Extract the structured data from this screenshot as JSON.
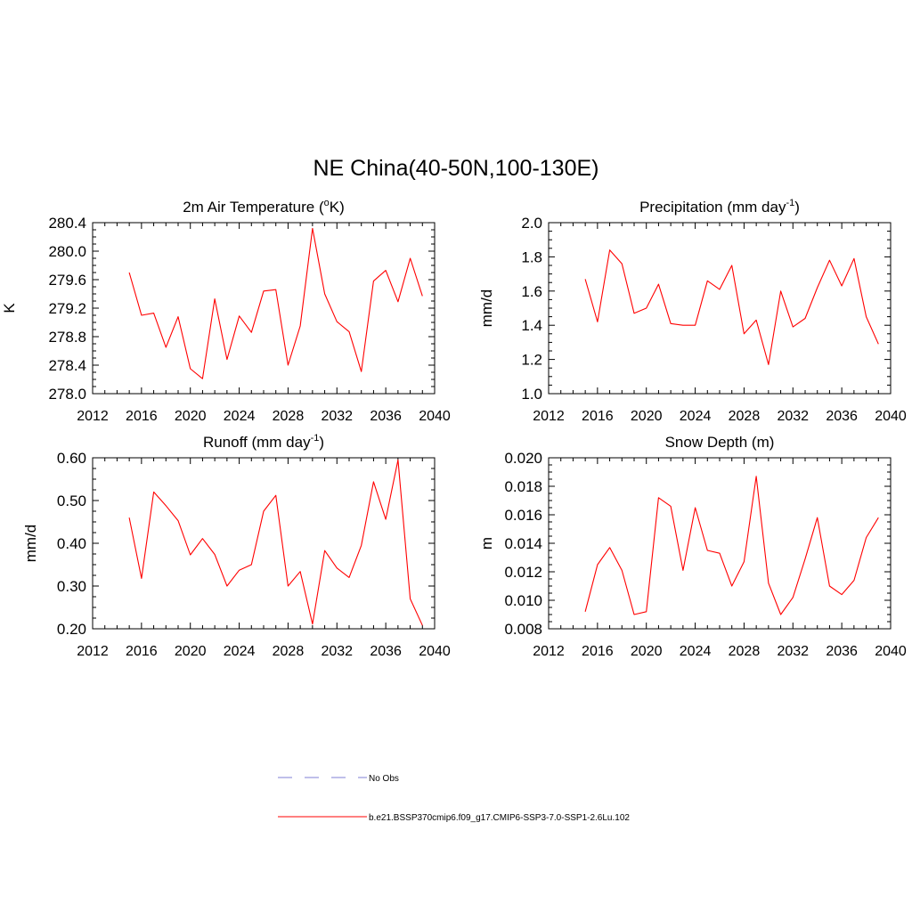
{
  "title": "NE China(40-50N,100-130E)",
  "series_color": "#ff0000",
  "legend": {
    "obs_label": "No Obs",
    "obs_color": "#9999dd",
    "model_label": "b.e21.BSSP370cmip6.f09_g17.CMIP6-SSP3-7.0-SSP1-2.6Lu.102",
    "model_color": "#ff0000"
  },
  "chart_data": [
    {
      "type": "line",
      "title_main": "2m Air Temperature (",
      "title_sup": "o",
      "title_end": "K)",
      "ylabel": "K",
      "xlim": [
        2012,
        2040
      ],
      "xticks": [
        "2012",
        "2016",
        "2020",
        "2024",
        "2028",
        "2032",
        "2036",
        "2040"
      ],
      "ylim": [
        278.0,
        280.4
      ],
      "yticks": [
        "278.0",
        "278.4",
        "278.8",
        "279.2",
        "279.6",
        "280.0",
        "280.4"
      ],
      "x": [
        2015,
        2016,
        2017,
        2018,
        2019,
        2020,
        2021,
        2022,
        2023,
        2024,
        2025,
        2026,
        2027,
        2028,
        2029,
        2030,
        2031,
        2032,
        2033,
        2034,
        2035,
        2036,
        2037,
        2038,
        2039
      ],
      "series": [
        {
          "values": [
            279.7,
            279.1,
            279.13,
            278.65,
            279.08,
            278.35,
            278.21,
            279.33,
            278.48,
            279.09,
            278.86,
            279.44,
            279.46,
            278.4,
            278.95,
            280.32,
            279.4,
            279.01,
            278.87,
            278.31,
            279.58,
            279.73,
            279.29,
            279.9,
            279.37
          ]
        }
      ]
    },
    {
      "type": "line",
      "title_main": "Precipitation (mm day",
      "title_sup": "-1",
      "title_end": ")",
      "ylabel": "mm/d",
      "xlim": [
        2012,
        2040
      ],
      "xticks": [
        "2012",
        "2016",
        "2020",
        "2024",
        "2028",
        "2032",
        "2036",
        "2040"
      ],
      "ylim": [
        1.0,
        2.0
      ],
      "yticks": [
        "1.0",
        "1.2",
        "1.4",
        "1.6",
        "1.8",
        "2.0"
      ],
      "x": [
        2015,
        2016,
        2017,
        2018,
        2019,
        2020,
        2021,
        2022,
        2023,
        2024,
        2025,
        2026,
        2027,
        2028,
        2029,
        2030,
        2031,
        2032,
        2033,
        2034,
        2035,
        2036,
        2037,
        2038,
        2039
      ],
      "series": [
        {
          "values": [
            1.67,
            1.42,
            1.84,
            1.76,
            1.47,
            1.5,
            1.64,
            1.41,
            1.4,
            1.4,
            1.66,
            1.61,
            1.75,
            1.35,
            1.43,
            1.17,
            1.6,
            1.39,
            1.44,
            1.62,
            1.78,
            1.63,
            1.79,
            1.45,
            1.29
          ]
        }
      ]
    },
    {
      "type": "line",
      "title_main": "Runoff (mm day",
      "title_sup": "-1",
      "title_end": ")",
      "ylabel": "mm/d",
      "xlim": [
        2012,
        2040
      ],
      "xticks": [
        "2012",
        "2016",
        "2020",
        "2024",
        "2028",
        "2032",
        "2036",
        "2040"
      ],
      "ylim": [
        0.2,
        0.6
      ],
      "yticks": [
        "0.20",
        "0.30",
        "0.40",
        "0.50",
        "0.60"
      ],
      "x": [
        2015,
        2016,
        2017,
        2018,
        2019,
        2020,
        2021,
        2022,
        2023,
        2024,
        2025,
        2026,
        2027,
        2028,
        2029,
        2030,
        2031,
        2032,
        2033,
        2034,
        2035,
        2036,
        2037,
        2038,
        2039
      ],
      "series": [
        {
          "values": [
            0.46,
            0.318,
            0.52,
            0.488,
            0.453,
            0.373,
            0.411,
            0.374,
            0.3,
            0.337,
            0.35,
            0.475,
            0.512,
            0.3,
            0.334,
            0.211,
            0.383,
            0.342,
            0.32,
            0.395,
            0.544,
            0.456,
            0.595,
            0.27,
            0.208
          ]
        }
      ]
    },
    {
      "type": "line",
      "title_main": "Snow Depth (m)",
      "title_sup": "",
      "title_end": "",
      "ylabel": "m",
      "xlim": [
        2012,
        2040
      ],
      "xticks": [
        "2012",
        "2016",
        "2020",
        "2024",
        "2028",
        "2032",
        "2036",
        "2040"
      ],
      "ylim": [
        0.008,
        0.02
      ],
      "yticks": [
        "0.008",
        "0.010",
        "0.012",
        "0.014",
        "0.016",
        "0.018",
        "0.020"
      ],
      "x": [
        2015,
        2016,
        2017,
        2018,
        2019,
        2020,
        2021,
        2022,
        2023,
        2024,
        2025,
        2026,
        2027,
        2028,
        2029,
        2030,
        2031,
        2032,
        2033,
        2034,
        2035,
        2036,
        2037,
        2038,
        2039
      ],
      "series": [
        {
          "values": [
            0.0092,
            0.0125,
            0.0137,
            0.0121,
            0.009,
            0.0092,
            0.0172,
            0.0166,
            0.0121,
            0.0165,
            0.0135,
            0.0133,
            0.011,
            0.0127,
            0.0187,
            0.0112,
            0.009,
            0.0102,
            0.0129,
            0.0158,
            0.011,
            0.0104,
            0.0114,
            0.0144,
            0.0158
          ]
        }
      ]
    }
  ]
}
